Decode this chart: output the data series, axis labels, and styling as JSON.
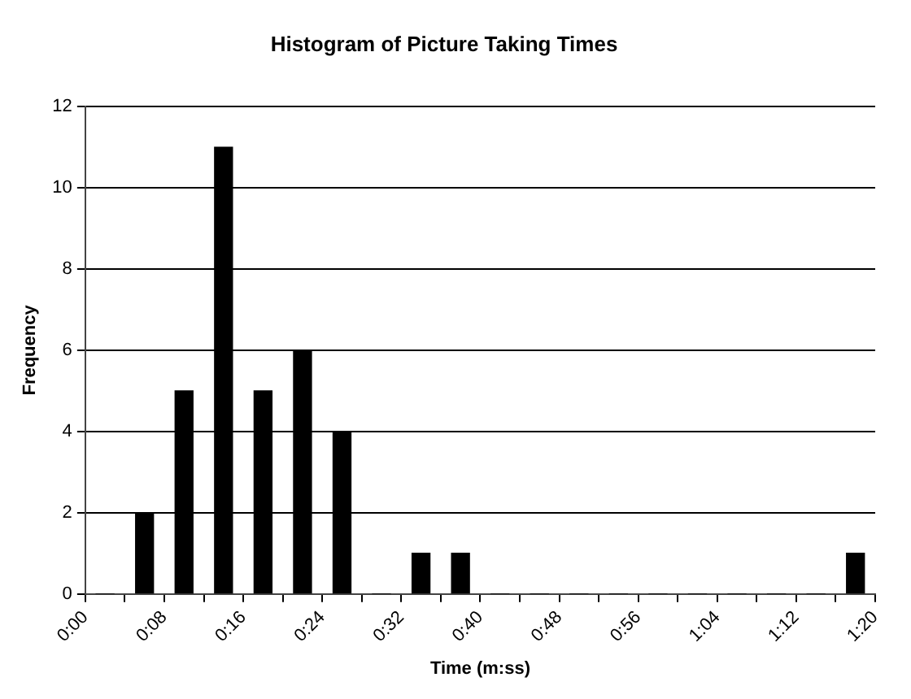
{
  "chart_data": {
    "type": "bar",
    "title": "Histogram of Picture Taking Times",
    "xlabel": "Time (m:ss)",
    "ylabel": "Frequency",
    "x": [
      2,
      6,
      10,
      14,
      18,
      22,
      26,
      30,
      34,
      38,
      42,
      46,
      50,
      54,
      58,
      62,
      66,
      70,
      74,
      78
    ],
    "values": [
      0,
      2,
      5,
      11,
      5,
      6,
      4,
      0,
      1,
      1,
      0,
      0,
      0,
      0,
      0,
      0,
      0,
      0,
      0,
      1
    ],
    "color": "#000000",
    "xlim": [
      0,
      80
    ],
    "xticks": [
      {
        "value": 0,
        "label": "0:00"
      },
      {
        "value": 4,
        "label": null
      },
      {
        "value": 8,
        "label": "0:08"
      },
      {
        "value": 12,
        "label": null
      },
      {
        "value": 16,
        "label": "0:16"
      },
      {
        "value": 20,
        "label": null
      },
      {
        "value": 24,
        "label": "0:24"
      },
      {
        "value": 28,
        "label": null
      },
      {
        "value": 32,
        "label": "0:32"
      },
      {
        "value": 36,
        "label": null
      },
      {
        "value": 40,
        "label": "0:40"
      },
      {
        "value": 44,
        "label": null
      },
      {
        "value": 48,
        "label": "0:48"
      },
      {
        "value": 52,
        "label": null
      },
      {
        "value": 56,
        "label": "0:56"
      },
      {
        "value": 60,
        "label": null
      },
      {
        "value": 64,
        "label": "1:04"
      },
      {
        "value": 68,
        "label": null
      },
      {
        "value": 72,
        "label": "1:12"
      },
      {
        "value": 76,
        "label": null
      },
      {
        "value": 80,
        "label": "1:20"
      }
    ],
    "ylim": [
      0,
      12
    ],
    "yticks": [
      0,
      2,
      4,
      6,
      8,
      10,
      12
    ],
    "grid": "y",
    "legend": false
  }
}
